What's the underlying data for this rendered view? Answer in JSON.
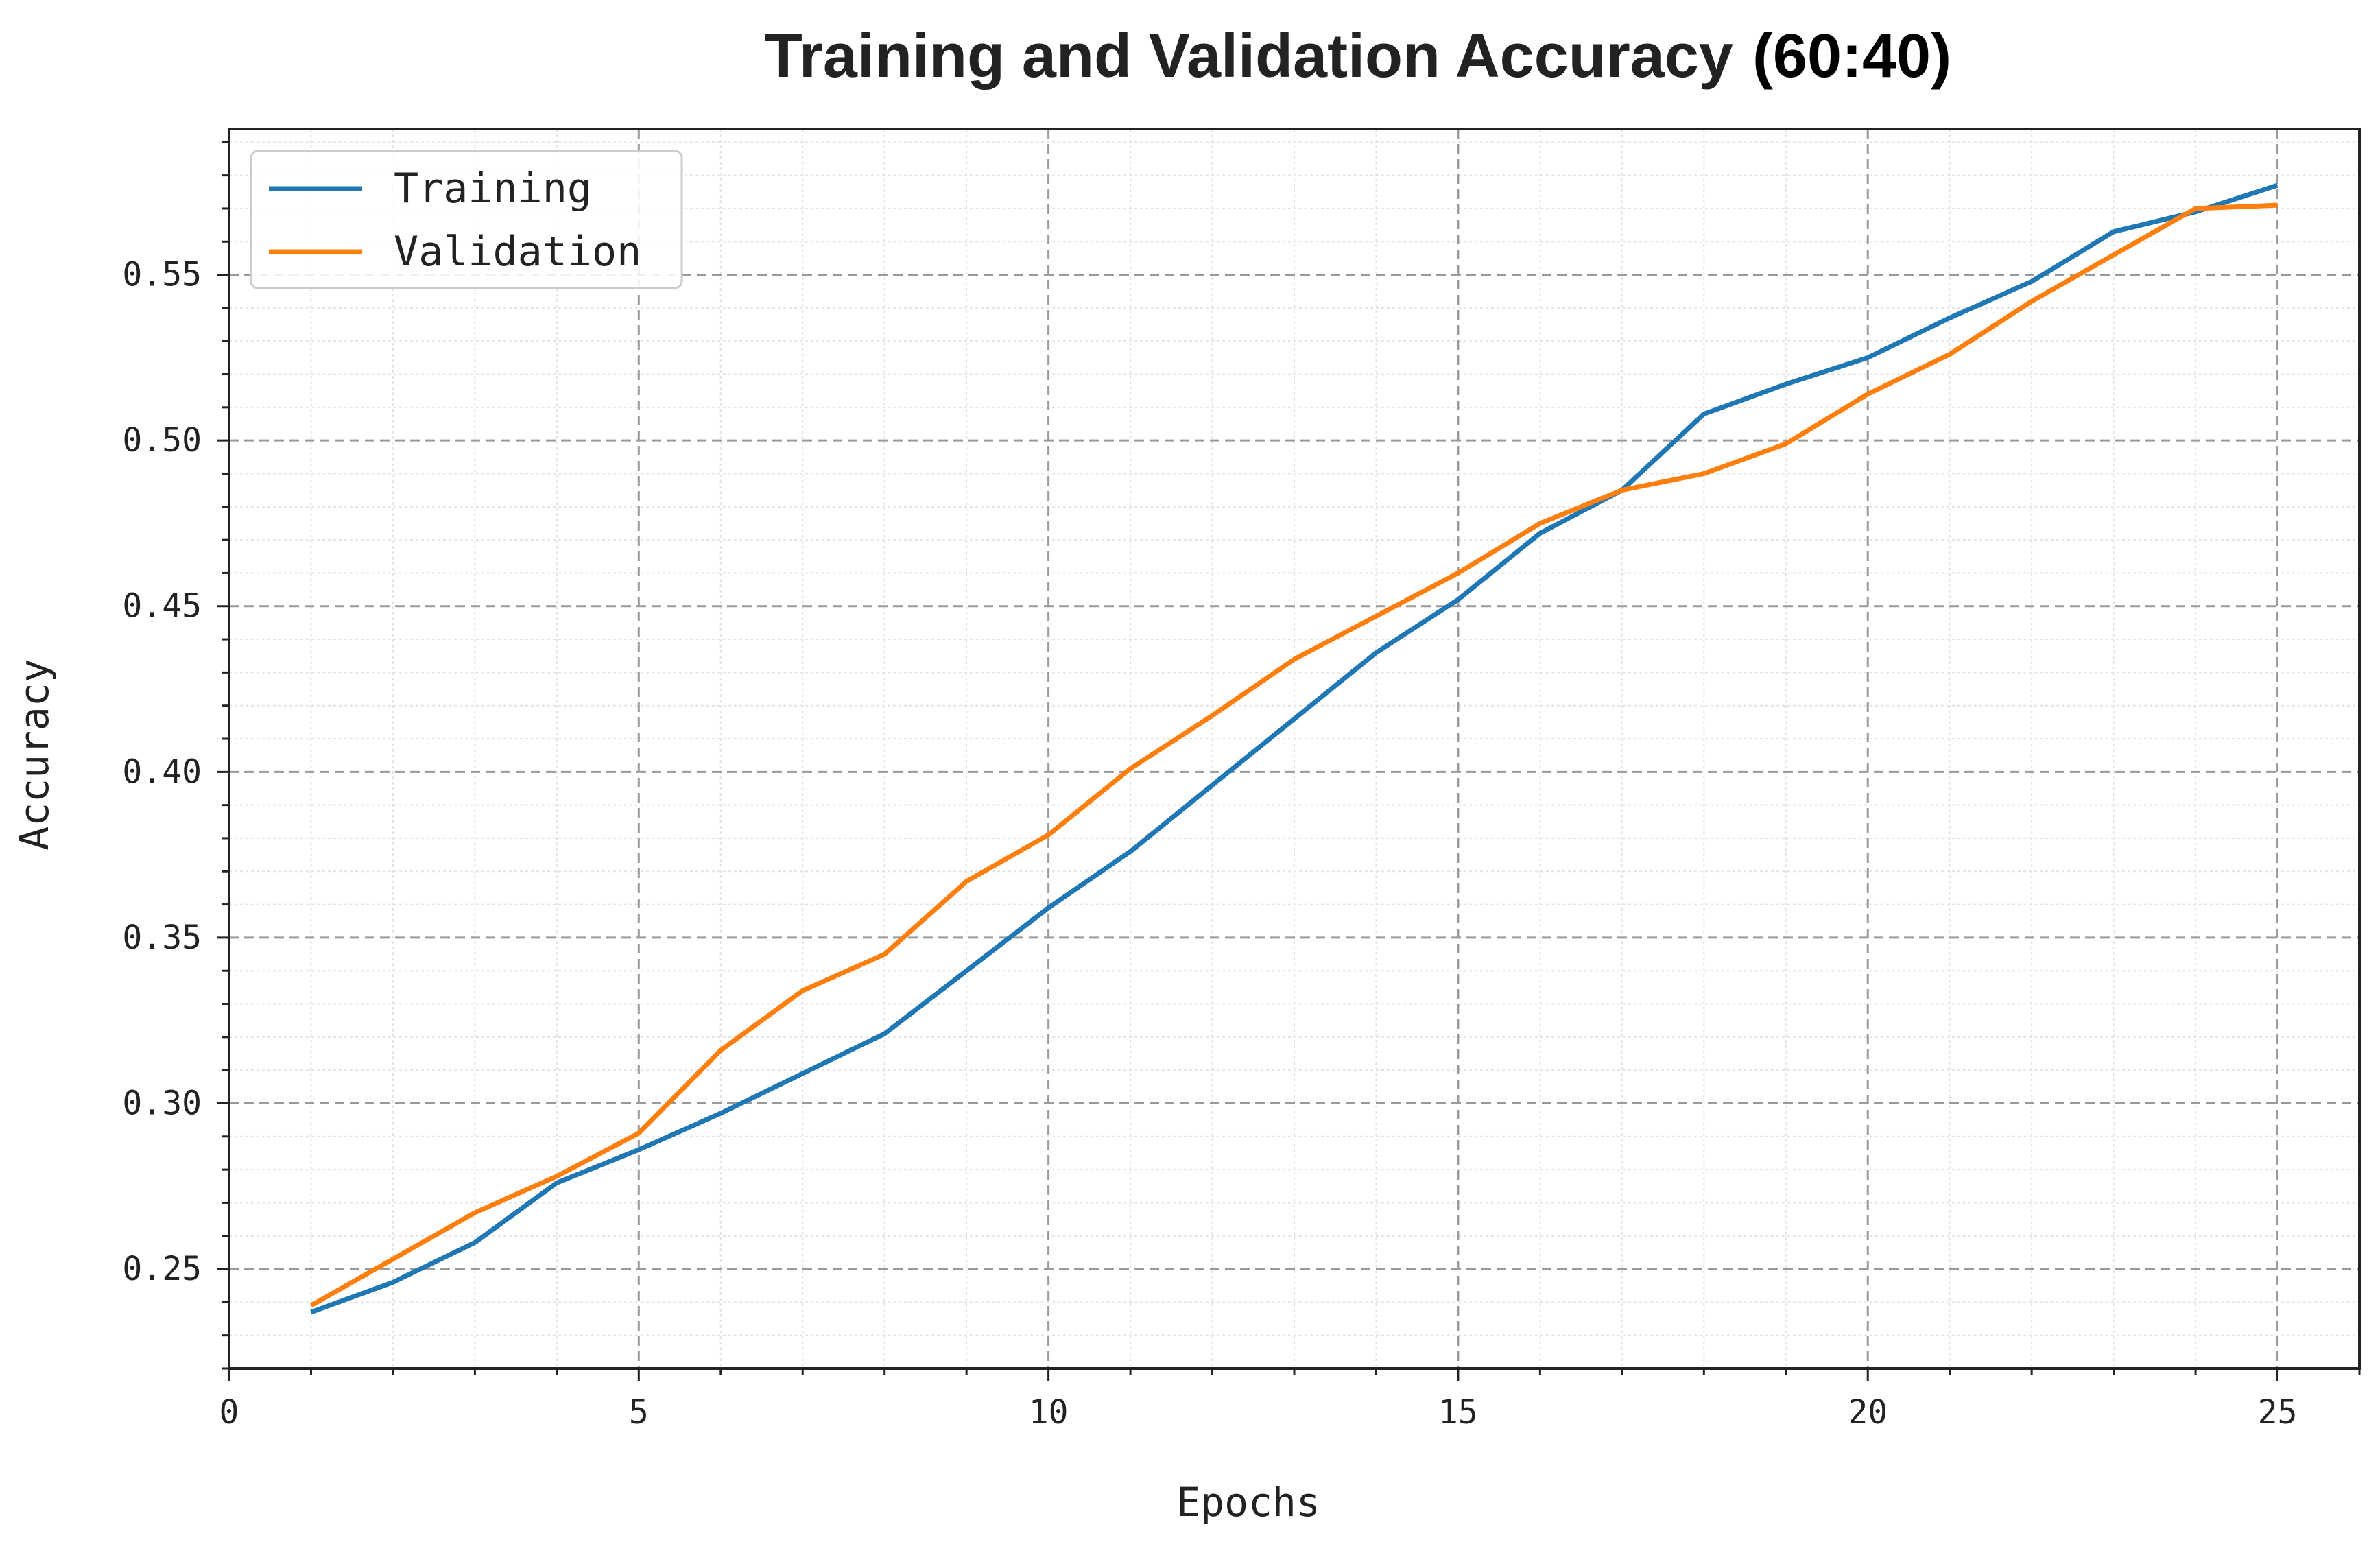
{
  "chart_data": {
    "type": "line",
    "title": "Training and Validation Accuracy",
    "title_suffix": "(60:40)",
    "xlabel": "Epochs",
    "ylabel": "Accuracy",
    "xlim": [
      0,
      26
    ],
    "ylim": [
      0.22,
      0.594
    ],
    "xticks": [
      0,
      5,
      10,
      15,
      20,
      25
    ],
    "yticks": [
      0.25,
      0.3,
      0.35,
      0.4,
      0.45,
      0.5,
      0.55
    ],
    "ytick_labels": [
      "0.25",
      "0.30",
      "0.35",
      "0.40",
      "0.45",
      "0.50",
      "0.55"
    ],
    "grid": true,
    "legend_position": "top-left",
    "x": [
      1,
      2,
      3,
      4,
      5,
      6,
      7,
      8,
      9,
      10,
      11,
      12,
      13,
      14,
      15,
      16,
      17,
      18,
      19,
      20,
      21,
      22,
      23,
      24,
      25
    ],
    "series": [
      {
        "name": "Training",
        "color": "#1f77b4",
        "values": [
          0.237,
          0.246,
          0.258,
          0.276,
          0.286,
          0.297,
          0.309,
          0.321,
          0.34,
          0.359,
          0.376,
          0.396,
          0.416,
          0.436,
          0.452,
          0.472,
          0.485,
          0.508,
          0.517,
          0.525,
          0.537,
          0.548,
          0.563,
          0.569,
          0.577
        ]
      },
      {
        "name": "Validation",
        "color": "#ff7f0e",
        "values": [
          0.239,
          0.253,
          0.267,
          0.278,
          0.291,
          0.316,
          0.334,
          0.345,
          0.367,
          0.381,
          0.401,
          0.417,
          0.434,
          0.447,
          0.46,
          0.475,
          0.485,
          0.49,
          0.499,
          0.514,
          0.526,
          0.542,
          0.556,
          0.57,
          0.571
        ]
      }
    ]
  }
}
